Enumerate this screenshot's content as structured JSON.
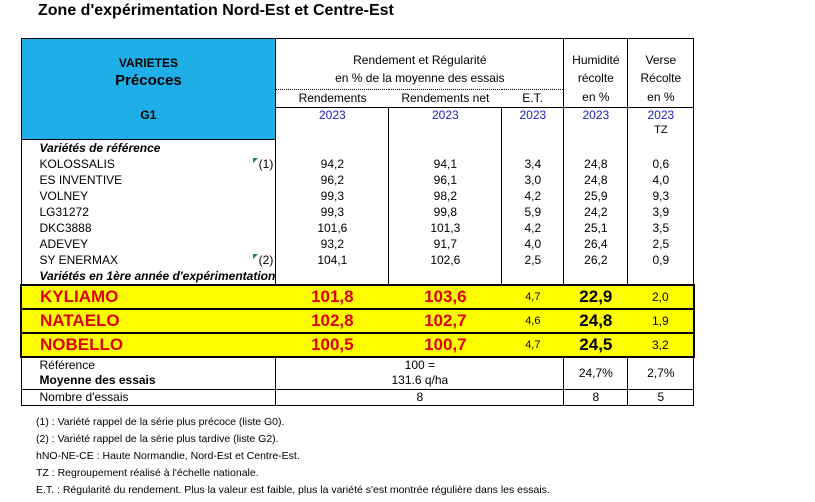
{
  "title": "Zone d'expérimentation Nord-Est et Centre-Est",
  "header": {
    "varietes": "VARIETES",
    "precoces": "Précoces",
    "group": "G1",
    "rend_title": "Rendement et Régularité",
    "rend_sub": "en % de la moyenne des essais",
    "col_rend": "Rendements",
    "col_rend_net": "Rendements net",
    "col_et": "E.T.",
    "hum": [
      "Humidité",
      "récolte",
      "en %"
    ],
    "verse": [
      "Verse",
      "Récolte",
      "en %"
    ],
    "years": [
      "2023",
      "2023",
      "2023",
      "2023",
      "2023"
    ],
    "tz": "TZ"
  },
  "section_ref": "Variétés de référence",
  "ref_rows": [
    {
      "name": "KOLOSSALIS",
      "note": "(1)",
      "rend": "94,2",
      "net": "94,1",
      "et": "3,4",
      "hum": "24,8",
      "verse": "0,6"
    },
    {
      "name": "ES INVENTIVE",
      "note": "",
      "rend": "96,2",
      "net": "96,1",
      "et": "3,0",
      "hum": "24,8",
      "verse": "4,0"
    },
    {
      "name": "VOLNEY",
      "note": "",
      "rend": "99,3",
      "net": "98,2",
      "et": "4,2",
      "hum": "25,9",
      "verse": "9,3"
    },
    {
      "name": "LG31272",
      "note": "",
      "rend": "99,3",
      "net": "99,8",
      "et": "5,9",
      "hum": "24,2",
      "verse": "3,9"
    },
    {
      "name": "DKC3888",
      "note": "",
      "rend": "101,6",
      "net": "101,3",
      "et": "4,2",
      "hum": "25,1",
      "verse": "3,5"
    },
    {
      "name": "ADEVEY",
      "note": "",
      "rend": "93,2",
      "net": "91,7",
      "et": "4,0",
      "hum": "26,4",
      "verse": "2,5"
    },
    {
      "name": "SY ENERMAX",
      "note": "(2)",
      "rend": "104,1",
      "net": "102,6",
      "et": "2,5",
      "hum": "26,2",
      "verse": "0,9"
    }
  ],
  "section_new": "Variétés en 1ère année d'expérimentation",
  "new_rows": [
    {
      "name": "KYLIAMO",
      "rend": "101,8",
      "net": "103,6",
      "et": "4,7",
      "hum": "22,9",
      "verse": "2,0"
    },
    {
      "name": "NATAELO",
      "rend": "102,8",
      "net": "102,7",
      "et": "4,6",
      "hum": "24,8",
      "verse": "1,9"
    },
    {
      "name": "NOBELLO",
      "rend": "100,5",
      "net": "100,7",
      "et": "4,7",
      "hum": "24,5",
      "verse": "3,2"
    }
  ],
  "reference": {
    "label": "Référence",
    "label2": "Moyenne des essais",
    "val1": "100 =",
    "val2": "131.6 q/ha",
    "hum": "24,7%",
    "verse": "2,7%"
  },
  "nombre": {
    "label": "Nombre d'essais",
    "rend": "8",
    "hum": "8",
    "verse": "5"
  },
  "notes": [
    "(1) : Variété rappel de la série plus précoce (liste G0).",
    "(2) : Variété rappel de la série plus tardive (liste G2).",
    "hNO-NE-CE : Haute Normandie, Nord-Est et Centre-Est.",
    "TZ : Regroupement réalisé à l'échelle nationale.",
    "E.T. : Régularité du rendement. Plus la valeur est faible, plus la variété s'est montrée régulière dans les essais."
  ],
  "colors": {
    "header_blue": "#1eaee8",
    "highlight": "#ffff00",
    "red": "#e00000",
    "year_blue": "#2020c0"
  }
}
